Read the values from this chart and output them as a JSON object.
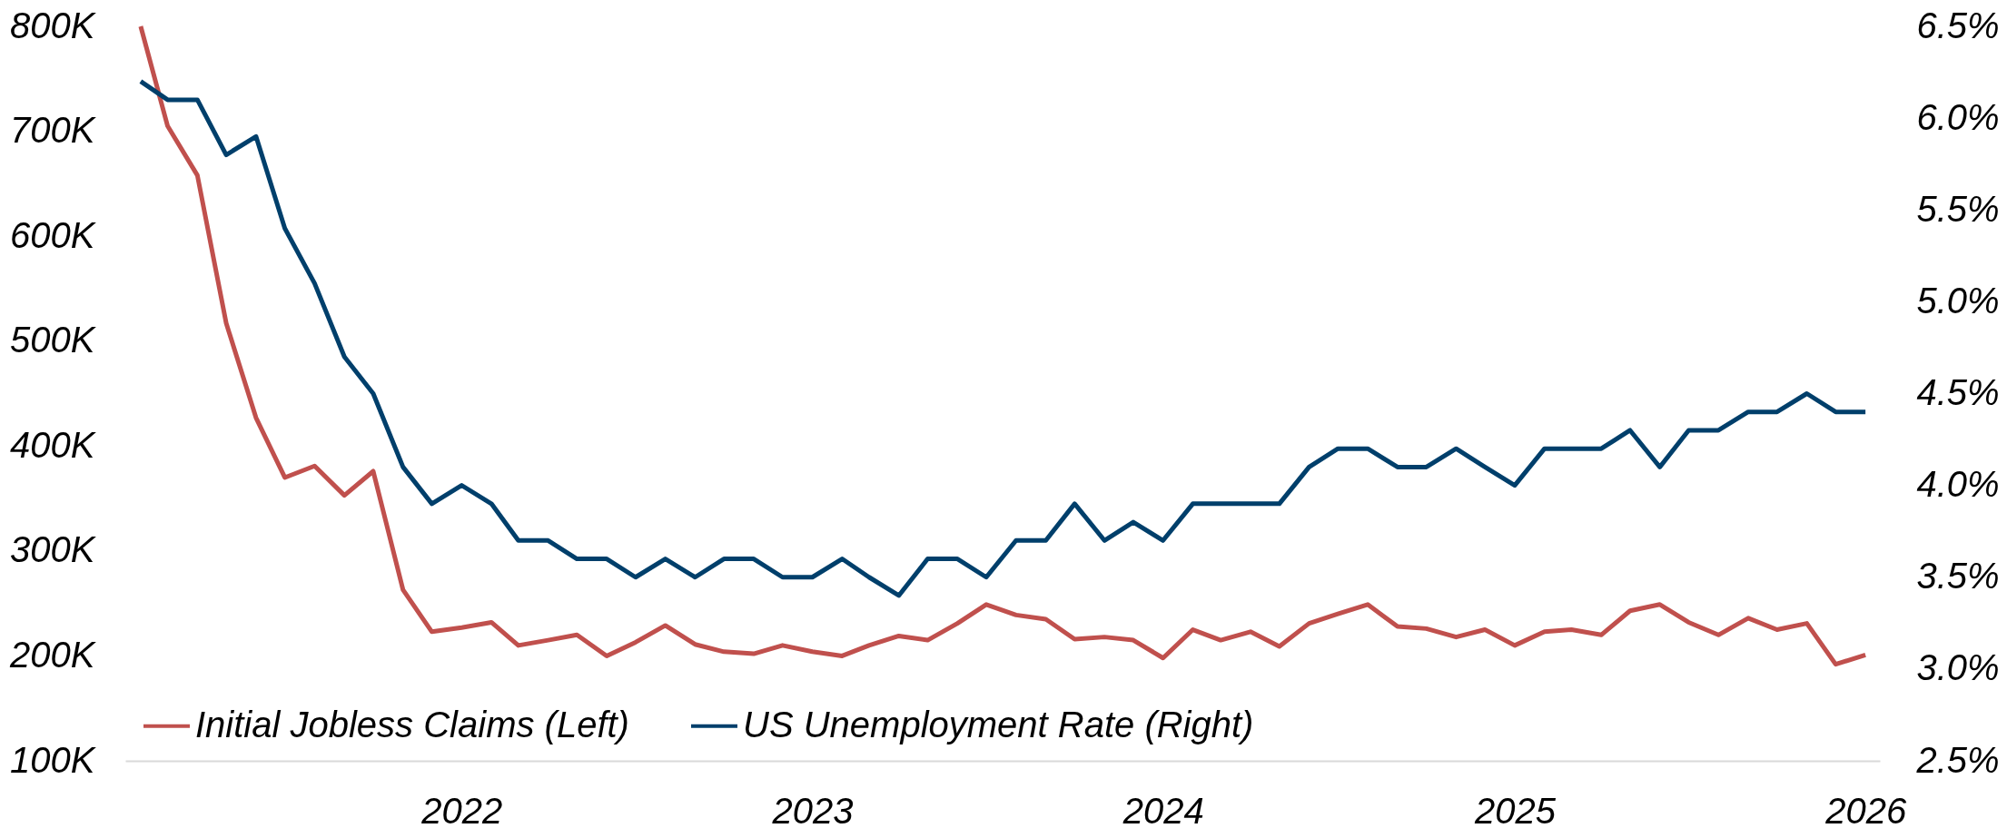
{
  "chart_data": {
    "type": "line",
    "x": [
      "2021-02",
      "2021-03",
      "2021-04",
      "2021-05",
      "2021-06",
      "2021-07",
      "2021-08",
      "2021-09",
      "2021-10",
      "2021-11",
      "2021-12",
      "2022-01",
      "2022-02",
      "2022-03",
      "2022-04",
      "2022-05",
      "2022-06",
      "2022-07",
      "2022-08",
      "2022-09",
      "2022-10",
      "2022-11",
      "2022-12",
      "2023-01",
      "2023-02",
      "2023-03",
      "2023-04",
      "2023-05",
      "2023-06",
      "2023-07",
      "2023-08",
      "2023-09",
      "2023-10",
      "2023-11",
      "2023-12",
      "2024-01",
      "2024-02",
      "2024-03",
      "2024-04",
      "2024-05",
      "2024-06",
      "2024-07",
      "2024-08",
      "2024-09",
      "2024-10",
      "2024-11",
      "2024-12",
      "2025-01",
      "2025-02",
      "2025-03",
      "2025-04",
      "2025-05",
      "2025-06",
      "2025-07",
      "2025-08",
      "2025-09",
      "2025-10",
      "2025-11",
      "2025-12",
      "2026-01"
    ],
    "series": [
      {
        "name": "Initial Jobless Claims (Left)",
        "color": "#c0504d",
        "values": [
          800000,
          705000,
          658000,
          517000,
          427000,
          370000,
          381000,
          353000,
          376000,
          263000,
          223000,
          227000,
          232000,
          210000,
          215000,
          220000,
          200000,
          213000,
          229000,
          211000,
          204000,
          202000,
          210000,
          204000,
          200000,
          210000,
          219000,
          215000,
          231000,
          249000,
          239000,
          235000,
          216000,
          218000,
          215000,
          198000,
          225000,
          215000,
          223000,
          209000,
          231000,
          240000,
          249000,
          228000,
          226000,
          218000,
          225000,
          210000,
          223000,
          225000,
          220000,
          243000,
          249000,
          232000,
          220000,
          236000,
          225000,
          231000,
          192000,
          201000
        ]
      },
      {
        "name": "US Unemployment Rate (Right)",
        "color": "#003f6b",
        "axis": "y2",
        "values": [
          6.2,
          6.1,
          6.1,
          5.8,
          5.9,
          5.4,
          5.1,
          4.7,
          4.5,
          4.1,
          3.9,
          4.0,
          3.9,
          3.7,
          3.7,
          3.6,
          3.6,
          3.5,
          3.6,
          3.5,
          3.6,
          3.6,
          3.5,
          3.5,
          3.6,
          3.5,
          3.4,
          3.6,
          3.6,
          3.5,
          3.7,
          3.7,
          3.9,
          3.7,
          3.8,
          3.7,
          3.9,
          3.9,
          3.9,
          3.9,
          4.1,
          4.2,
          4.2,
          4.1,
          4.1,
          4.2,
          4.1,
          4.0,
          4.2,
          4.2,
          4.2,
          4.3,
          4.1,
          4.3,
          4.3,
          4.4,
          4.4,
          4.5,
          4.4,
          4.4
        ]
      }
    ],
    "xlim": [
      "2021-01-16",
      "2026-01-16"
    ],
    "xticks": [
      "2022",
      "2023",
      "2024",
      "2025",
      "2026"
    ],
    "ylim": [
      100000,
      800000
    ],
    "yticks": [
      {
        "value": 100000,
        "label": "100K"
      },
      {
        "value": 200000,
        "label": "200K"
      },
      {
        "value": 300000,
        "label": "300K"
      },
      {
        "value": 400000,
        "label": "400K"
      },
      {
        "value": 500000,
        "label": "500K"
      },
      {
        "value": 600000,
        "label": "600K"
      },
      {
        "value": 700000,
        "label": "700K"
      },
      {
        "value": 800000,
        "label": "800K"
      }
    ],
    "y2lim": [
      2.5,
      6.5
    ],
    "y2ticks": [
      {
        "value": 2.5,
        "label": "2.5%"
      },
      {
        "value": 3.0,
        "label": "3.0%"
      },
      {
        "value": 3.5,
        "label": "3.5%"
      },
      {
        "value": 4.0,
        "label": "4.0%"
      },
      {
        "value": 4.5,
        "label": "4.5%"
      },
      {
        "value": 5.0,
        "label": "5.0%"
      },
      {
        "value": 5.5,
        "label": "5.5%"
      },
      {
        "value": 6.0,
        "label": "6.0%"
      },
      {
        "value": 6.5,
        "label": "6.5%"
      }
    ],
    "legend": "bottom left"
  }
}
